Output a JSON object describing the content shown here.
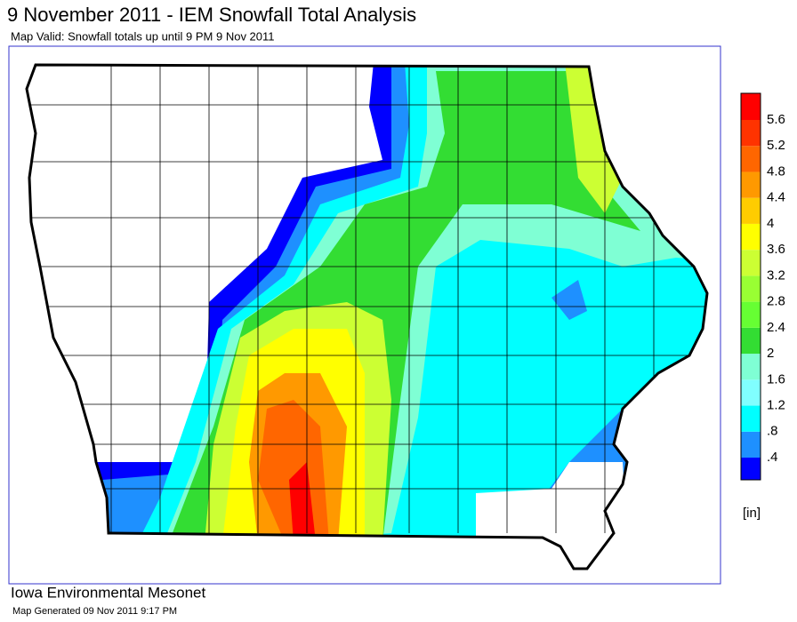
{
  "header": {
    "title": "9 November 2011 - IEM Snowfall Total Analysis",
    "subtitle": "Map Valid: Snowfall totals up until 9 PM 9 Nov 2011"
  },
  "legend": {
    "labels": [
      ".4",
      ".8",
      "1.2",
      "1.6",
      "2",
      "2.4",
      "2.8",
      "3.2",
      "3.6",
      "4",
      "4.4",
      "4.8",
      "5.2",
      "5.6"
    ],
    "colors": [
      "#0000ff",
      "#1e90ff",
      "#00ffff",
      "#80ffff",
      "#7fffd4",
      "#33dd33",
      "#66ff33",
      "#99ff33",
      "#ccff33",
      "#ffff00",
      "#ffcc00",
      "#ff9900",
      "#ff6600",
      "#ff3300",
      "#ff0000"
    ],
    "unit": "[in]"
  },
  "footer": {
    "org": "Iowa Environmental Mesonet",
    "generated": "Map Generated 09 Nov 2011 9:17 PM"
  }
}
